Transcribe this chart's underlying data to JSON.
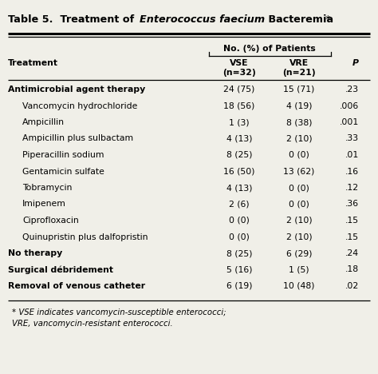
{
  "rows": [
    {
      "treatment": "Antimicrobial agent therapy",
      "indent": 0,
      "vse": "24 (75)",
      "vre": "15 (71)",
      "p": ".23"
    },
    {
      "treatment": "Vancomycin hydrochloride",
      "indent": 1,
      "vse": "18 (56)",
      "vre": "4 (19)",
      "p": ".006"
    },
    {
      "treatment": "Ampicillin",
      "indent": 1,
      "vse": "1 (3)",
      "vre": "8 (38)",
      "p": ".001"
    },
    {
      "treatment": "Ampicillin plus sulbactam",
      "indent": 1,
      "vse": "4 (13)",
      "vre": "2 (10)",
      "p": ".33"
    },
    {
      "treatment": "Piperacillin sodium",
      "indent": 1,
      "vse": "8 (25)",
      "vre": "0 (0)",
      "p": ".01"
    },
    {
      "treatment": "Gentamicin sulfate",
      "indent": 1,
      "vse": "16 (50)",
      "vre": "13 (62)",
      "p": ".16"
    },
    {
      "treatment": "Tobramycin",
      "indent": 1,
      "vse": "4 (13)",
      "vre": "0 (0)",
      "p": ".12"
    },
    {
      "treatment": "Imipenem",
      "indent": 1,
      "vse": "2 (6)",
      "vre": "0 (0)",
      "p": ".36"
    },
    {
      "treatment": "Ciprofloxacin",
      "indent": 1,
      "vse": "0 (0)",
      "vre": "2 (10)",
      "p": ".15"
    },
    {
      "treatment": "Quinupristin plus dalfopristin",
      "indent": 1,
      "vse": "0 (0)",
      "vre": "2 (10)",
      "p": ".15"
    },
    {
      "treatment": "No therapy",
      "indent": 0,
      "vse": "8 (25)",
      "vre": "6 (29)",
      "p": ".24"
    },
    {
      "treatment": "Surgical débridement",
      "indent": 0,
      "vse": "5 (16)",
      "vre": "1 (5)",
      "p": ".18"
    },
    {
      "treatment": "Removal of venous catheter",
      "indent": 0,
      "vse": "6 (19)",
      "vre": "10 (48)",
      "p": ".02"
    }
  ],
  "col_header_group": "No. (%) of Patients",
  "footnote_lines": [
    "* VSE indicates vancomycin-susceptible enterococci;",
    "VRE, vancomycin-resistant enterococci."
  ],
  "bg_color": "#f0efe8",
  "font_size": 7.8,
  "title_font_size": 9.2
}
